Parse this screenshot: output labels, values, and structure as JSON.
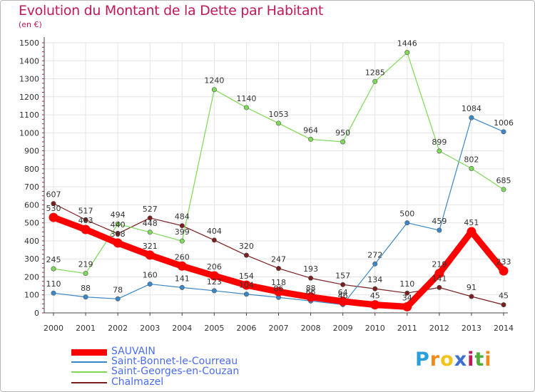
{
  "chart_data": {
    "type": "line",
    "title": "Evolution du Montant de la Dette par Habitant",
    "subtitle": "(en €)",
    "xlabel": "",
    "ylabel": "",
    "ylim": [
      0,
      1500
    ],
    "y_ticks": [
      "0",
      "100",
      "200",
      "300",
      "400",
      "500",
      "600",
      "700",
      "800",
      "900",
      "1000",
      "1100",
      "1200",
      "1300",
      "1400",
      "1500"
    ],
    "categories": [
      "2000",
      "2001",
      "2002",
      "2003",
      "2004",
      "2005",
      "2006",
      "2007",
      "2008",
      "2009",
      "2010",
      "2011",
      "2012",
      "2013",
      "2014"
    ],
    "grid": true,
    "legend_position": "bottom-left",
    "series": [
      {
        "name": "Chalmazel",
        "color": "#7a1e1e",
        "values": [
          607,
          517,
          440,
          527,
          484,
          404,
          320,
          247,
          193,
          157,
          134,
          110,
          141,
          91,
          45
        ],
        "labels": [
          "607",
          "517",
          "440",
          "527",
          "484",
          "404",
          "320",
          "247",
          "193",
          "157",
          "134",
          "110",
          "141",
          "91",
          "45"
        ]
      },
      {
        "name": "Saint-Bonnet-le-Courreau",
        "color": "#3a87c8",
        "values": [
          110,
          88,
          78,
          160,
          141,
          123,
          104,
          86,
          66,
          46,
          272,
          500,
          459,
          1084,
          1006
        ],
        "labels": [
          "110",
          "88",
          "78",
          "160",
          "141",
          "123",
          "104",
          "86",
          "66",
          "46",
          "272",
          "500",
          "459",
          "1084",
          "1006"
        ]
      },
      {
        "name": "Saint-Georges-en-Couzan",
        "color": "#7ed957",
        "values": [
          245,
          219,
          494,
          448,
          399,
          1240,
          1140,
          1053,
          964,
          950,
          1285,
          1446,
          899,
          802,
          685
        ],
        "labels": [
          "245",
          "219",
          "494",
          "448",
          "399",
          "1240",
          "1140",
          "1053",
          "964",
          "950",
          "1285",
          "1446",
          "899",
          "802",
          "685"
        ]
      },
      {
        "name": "SAUVAIN",
        "color": "#ff0000",
        "values": [
          530,
          463,
          388,
          321,
          260,
          206,
          154,
          118,
          88,
          64,
          45,
          34,
          219,
          451,
          233
        ],
        "labels": [
          "530",
          "463",
          "388",
          "321",
          "260",
          "206",
          "154",
          "118",
          "88",
          "64",
          "45",
          "34",
          "219",
          "451",
          "233"
        ]
      }
    ]
  },
  "legend": [
    {
      "name": "SAUVAIN",
      "color": "#ff0000",
      "text_color": "#4a6cf7"
    },
    {
      "name": "Saint-Bonnet-le-Courreau",
      "color": "#3a87c8",
      "text_color": "#4a6cf7"
    },
    {
      "name": "Saint-Georges-en-Couzan",
      "color": "#7ed957",
      "text_color": "#4a6cf7"
    },
    {
      "name": "Chalmazel",
      "color": "#7a1e1e",
      "text_color": "#4a6cf7"
    }
  ],
  "logo": {
    "text": "Proxiti",
    "letter_colors": [
      "#2b9fd9",
      "#f08a1c",
      "#f2c318",
      "#3d6fd1",
      "#c2185b",
      "#4fae3a",
      "#f08a1c"
    ]
  }
}
